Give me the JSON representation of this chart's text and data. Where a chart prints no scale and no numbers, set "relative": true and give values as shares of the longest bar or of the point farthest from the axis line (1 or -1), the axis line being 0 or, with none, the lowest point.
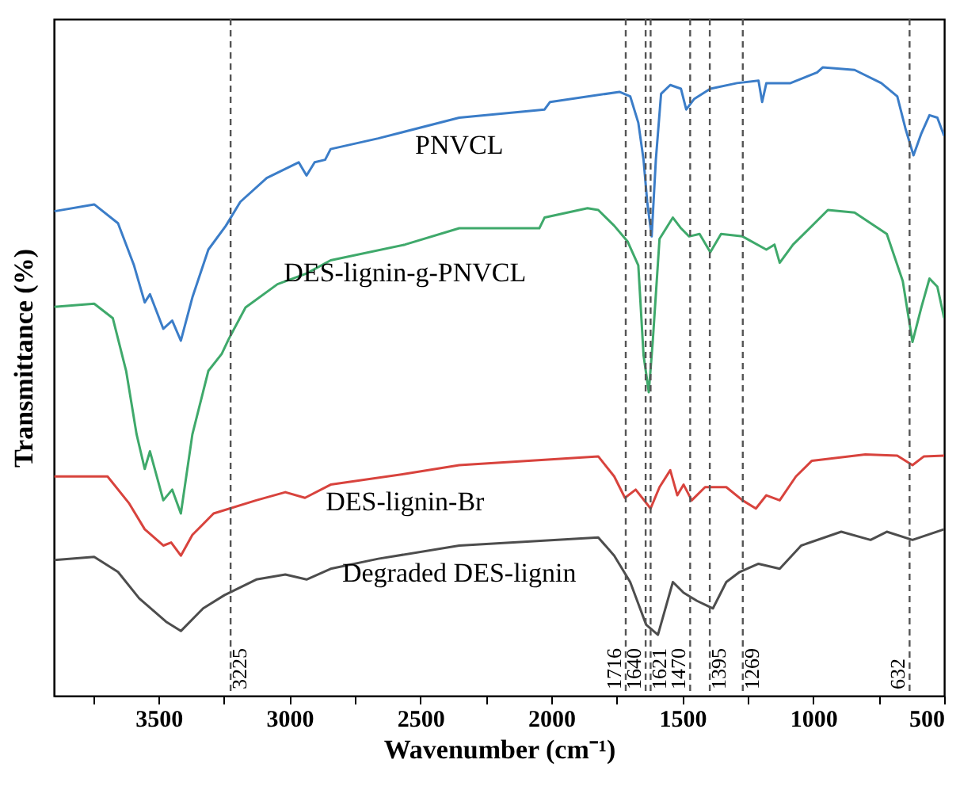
{
  "chart_data": {
    "type": "line",
    "xlabel": "Wavenumber (cm⁻¹)",
    "ylabel": "Transmittance (%)",
    "relative": true,
    "xlim": [
      3900,
      500
    ],
    "xticks": [
      {
        "value": 3750,
        "label": null
      },
      3500,
      {
        "value": 3250,
        "label": null
      },
      3000,
      {
        "value": 2750,
        "label": null
      },
      2500,
      {
        "value": 2250,
        "label": null
      },
      2000,
      {
        "value": 1750,
        "label": null
      },
      1500,
      {
        "value": 1250,
        "label": null
      },
      1000,
      {
        "value": 750,
        "label": null
      },
      500
    ],
    "grid": false,
    "legend": false,
    "line_style": "solid",
    "marker": "none",
    "series": [
      {
        "name": "PNVCL",
        "color": "#3b7dc8",
        "x": [
          3898,
          3746,
          3655,
          3594,
          3553,
          3533,
          3482,
          3448,
          3415,
          3371,
          3310,
          3243,
          3188,
          3087,
          2965,
          2935,
          2904,
          2864,
          2843,
          2661,
          2352,
          2026,
          2005,
          1740,
          1699,
          1668,
          1648,
          1634,
          1617,
          1601,
          1581,
          1546,
          1505,
          1485,
          1454,
          1393,
          1291,
          1209,
          1195,
          1179,
          1087,
          985,
          964,
          842,
          740,
          679,
          648,
          617,
          587,
          556,
          526,
          500
        ],
        "values": [
          0.771,
          0.782,
          0.752,
          0.685,
          0.626,
          0.639,
          0.584,
          0.597,
          0.565,
          0.634,
          0.71,
          0.748,
          0.786,
          0.824,
          0.849,
          0.828,
          0.849,
          0.853,
          0.87,
          0.887,
          0.92,
          0.933,
          0.945,
          0.961,
          0.954,
          0.912,
          0.853,
          0.786,
          0.731,
          0.853,
          0.958,
          0.972,
          0.966,
          0.933,
          0.95,
          0.966,
          0.975,
          0.979,
          0.945,
          0.975,
          0.975,
          0.992,
          1,
          0.996,
          0.975,
          0.954,
          0.903,
          0.86,
          0.895,
          0.924,
          0.92,
          0.891
        ]
      },
      {
        "name": "DES-lignin-g-PNVCL",
        "color": "#3fa96b",
        "x": [
          3898,
          3746,
          3675,
          3624,
          3584,
          3553,
          3533,
          3482,
          3448,
          3415,
          3371,
          3310,
          3259,
          3233,
          3168,
          3046,
          2935,
          2843,
          2559,
          2352,
          2046,
          2026,
          1862,
          1821,
          1760,
          1709,
          1668,
          1648,
          1628,
          1613,
          1587,
          1536,
          1505,
          1474,
          1434,
          1393,
          1352,
          1270,
          1179,
          1148,
          1128,
          1077,
          944,
          842,
          719,
          658,
          621,
          587,
          556,
          526,
          500
        ],
        "values": [
          0.619,
          0.624,
          0.601,
          0.517,
          0.416,
          0.361,
          0.389,
          0.311,
          0.328,
          0.29,
          0.416,
          0.517,
          0.544,
          0.567,
          0.618,
          0.655,
          0.672,
          0.693,
          0.718,
          0.744,
          0.744,
          0.761,
          0.776,
          0.773,
          0.748,
          0.723,
          0.685,
          0.542,
          0.483,
          0.563,
          0.727,
          0.761,
          0.744,
          0.731,
          0.735,
          0.706,
          0.735,
          0.731,
          0.71,
          0.718,
          0.689,
          0.718,
          0.773,
          0.769,
          0.735,
          0.66,
          0.563,
          0.618,
          0.664,
          0.651,
          0.601
        ]
      },
      {
        "name": "DES-lignin-Br",
        "color": "#d8433d",
        "x": [
          3898,
          3695,
          3614,
          3553,
          3482,
          3452,
          3415,
          3371,
          3290,
          3127,
          3016,
          2941,
          2843,
          2559,
          2352,
          1821,
          1760,
          1719,
          1678,
          1621,
          1587,
          1546,
          1519,
          1495,
          1464,
          1413,
          1332,
          1270,
          1219,
          1179,
          1128,
          1066,
          1005,
          801,
          679,
          621,
          577,
          500
        ],
        "values": [
          0.349,
          0.349,
          0.307,
          0.265,
          0.239,
          0.244,
          0.223,
          0.256,
          0.29,
          0.311,
          0.324,
          0.315,
          0.336,
          0.353,
          0.367,
          0.381,
          0.349,
          0.315,
          0.328,
          0.298,
          0.332,
          0.359,
          0.319,
          0.336,
          0.311,
          0.332,
          0.332,
          0.311,
          0.298,
          0.319,
          0.311,
          0.349,
          0.374,
          0.384,
          0.382,
          0.367,
          0.381,
          0.382
        ]
      },
      {
        "name": "Degraded DES-lignin",
        "color": "#4d4d4d",
        "x": [
          3898,
          3746,
          3655,
          3574,
          3472,
          3415,
          3330,
          3249,
          3127,
          3016,
          2935,
          2843,
          2661,
          2352,
          1821,
          1760,
          1699,
          1638,
          1593,
          1536,
          1495,
          1444,
          1383,
          1332,
          1281,
          1209,
          1128,
          1046,
          893,
          781,
          719,
          621,
          500
        ],
        "values": [
          0.216,
          0.221,
          0.197,
          0.155,
          0.118,
          0.103,
          0.139,
          0.16,
          0.185,
          0.193,
          0.185,
          0.202,
          0.218,
          0.239,
          0.252,
          0.223,
          0.181,
          0.113,
          0.097,
          0.181,
          0.164,
          0.151,
          0.139,
          0.181,
          0.197,
          0.21,
          0.202,
          0.239,
          0.261,
          0.248,
          0.261,
          0.248,
          0.265
        ]
      }
    ],
    "ref_lines": [
      {
        "axis": "x",
        "value": 3225,
        "label": "3225",
        "color": "#555555",
        "line_style": "dashed"
      },
      {
        "axis": "x",
        "value": 1640,
        "label": "1640",
        "color": "#555555",
        "line_style": "dashed"
      },
      {
        "axis": "x",
        "value": 1621,
        "label": "1621",
        "color": "#555555",
        "line_style": "dashed"
      },
      {
        "axis": "x",
        "value": 1470,
        "label": "1470",
        "color": "#555555",
        "line_style": "dashed"
      },
      {
        "axis": "x",
        "value": 1395,
        "label": "1395",
        "color": "#555555",
        "line_style": "dashed"
      },
      {
        "axis": "x",
        "value": 1716,
        "label": "1716",
        "color": "#555555",
        "line_style": "dashed"
      },
      {
        "axis": "x",
        "value": 1269,
        "label": "1269",
        "color": "#555555",
        "line_style": "dashed"
      },
      {
        "axis": "x",
        "value": 632,
        "label": "632",
        "color": "#555555",
        "line_style": "dashed"
      }
    ]
  }
}
